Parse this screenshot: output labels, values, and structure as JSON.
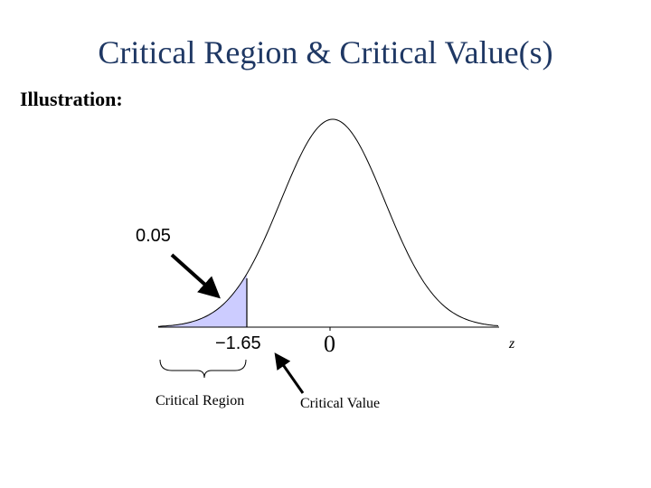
{
  "header": {
    "title": "Critical Region & Critical Value(s)",
    "subtitle": "Illustration:"
  },
  "diagram": {
    "tail_area_label": "0.05",
    "critical_value_label": "−1.65",
    "center_label": "0",
    "axis_label": "z",
    "region_caption": "Critical Region",
    "value_caption": "Critical Value"
  }
}
